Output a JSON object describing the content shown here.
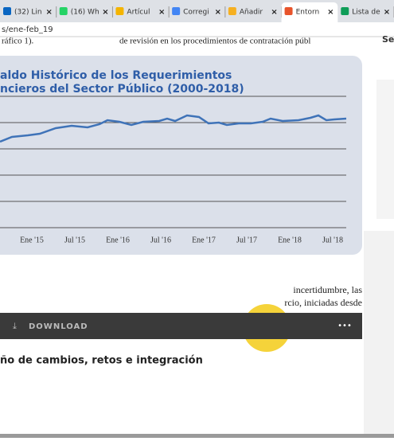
{
  "browser": {
    "tabs": [
      "(32) Lin",
      "(16) Wh",
      "Artícul",
      "Corregi",
      "Añadir",
      "Entorn",
      "Lista de"
    ],
    "active_tab": 5,
    "url": "s/ene-feb_19"
  },
  "article": {
    "top_left": "ráfico 1).",
    "top_right": "de revisión en los procedimientos de contratación públ",
    "side": "Se",
    "lines": [
      "incertidumbre,  las",
      "rcio, iniciadas desde"
    ]
  },
  "chart": {
    "title": [
      "aldo Histórico de los Requerimientos",
      "ncieros del Sector Público (2000-2018)"
    ],
    "x_labels": [
      "Ene '15",
      "Jul '15",
      "Ene '16",
      "Jul '16",
      "Ene '17",
      "Jul '17",
      "Ene '18",
      "Jul '18"
    ]
  },
  "viewer": {
    "download": "DOWNLOAD",
    "more": "•••",
    "heading": "ño de cambios, retos e integración"
  }
}
